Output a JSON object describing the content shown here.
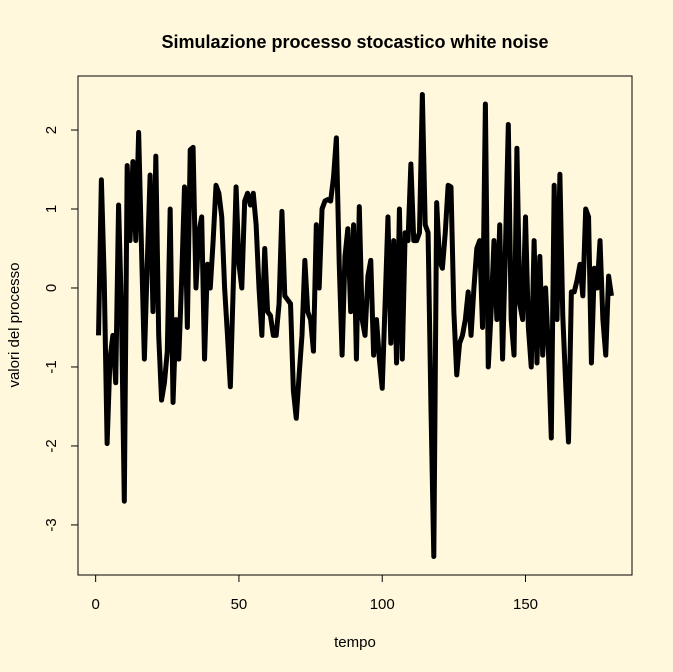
{
  "chart_data": {
    "type": "line",
    "title": "Simulazione processo stocastico white noise",
    "x_label": "tempo",
    "y_label": "valori del processo",
    "x": [
      1,
      2,
      3,
      4,
      5,
      6,
      7,
      8,
      9,
      10,
      11,
      12,
      13,
      14,
      15,
      16,
      17,
      18,
      19,
      20,
      21,
      22,
      23,
      24,
      25,
      26,
      27,
      28,
      29,
      30,
      31,
      32,
      33,
      34,
      35,
      36,
      37,
      38,
      39,
      40,
      41,
      42,
      43,
      44,
      45,
      46,
      47,
      48,
      49,
      50,
      51,
      52,
      53,
      54,
      55,
      56,
      57,
      58,
      59,
      60,
      61,
      62,
      63,
      64,
      65,
      66,
      67,
      68,
      69,
      70,
      71,
      72,
      73,
      74,
      75,
      76,
      77,
      78,
      79,
      80,
      81,
      82,
      83,
      84,
      85,
      86,
      87,
      88,
      89,
      90,
      91,
      92,
      93,
      94,
      95,
      96,
      97,
      98,
      99,
      100,
      101,
      102,
      103,
      104,
      105,
      106,
      107,
      108,
      109,
      110,
      111,
      112,
      113,
      114,
      115,
      116,
      117,
      118,
      119,
      120,
      121,
      122,
      123,
      124,
      125,
      126,
      127,
      128,
      129,
      130,
      131,
      132,
      133,
      134,
      135,
      136,
      137,
      138,
      139,
      140,
      141,
      142,
      143,
      144,
      145,
      146,
      147,
      148,
      149,
      150,
      151,
      152,
      153,
      154,
      155,
      156,
      157,
      158,
      159,
      160,
      161,
      162,
      163,
      164,
      165,
      166,
      167,
      168,
      169,
      170,
      171,
      172,
      173,
      174,
      175,
      176,
      177,
      178,
      179,
      180
    ],
    "series": [
      {
        "name": "white noise",
        "color": "#000000",
        "values": [
          -0.6,
          1.37,
          0.1,
          -1.97,
          -0.9,
          -0.6,
          -1.2,
          1.05,
          -0.3,
          -2.7,
          1.55,
          0.6,
          1.6,
          0.6,
          1.97,
          0.5,
          -0.9,
          0.3,
          1.43,
          -0.3,
          1.67,
          -0.6,
          -1.42,
          -1.2,
          -0.8,
          1.0,
          -1.45,
          -0.4,
          -0.9,
          0.1,
          1.28,
          -0.5,
          1.75,
          1.78,
          0.0,
          0.7,
          0.9,
          -0.9,
          0.3,
          0.0,
          0.6,
          1.3,
          1.2,
          0.9,
          0.0,
          -0.6,
          -1.25,
          0.0,
          1.28,
          0.3,
          0.0,
          1.1,
          1.2,
          1.05,
          1.2,
          0.8,
          0.0,
          -0.6,
          0.5,
          -0.3,
          -0.35,
          -0.6,
          -0.6,
          -0.2,
          0.97,
          -0.1,
          -0.15,
          -0.2,
          -1.3,
          -1.65,
          -1.1,
          -0.6,
          0.35,
          -0.3,
          -0.4,
          -0.8,
          0.8,
          0.0,
          1.0,
          1.1,
          1.12,
          1.1,
          1.4,
          1.9,
          0.3,
          -0.85,
          0.4,
          0.75,
          -0.3,
          0.8,
          -0.9,
          1.03,
          -0.4,
          -0.6,
          0.15,
          0.35,
          -0.85,
          -0.4,
          -0.9,
          -1.27,
          -0.2,
          0.9,
          -0.7,
          0.6,
          -0.95,
          1.0,
          -0.9,
          0.7,
          0.6,
          1.57,
          0.6,
          0.6,
          0.7,
          2.45,
          0.8,
          0.7,
          -1.5,
          -3.4,
          1.08,
          0.35,
          0.25,
          0.7,
          1.3,
          1.28,
          -0.3,
          -1.1,
          -0.7,
          -0.6,
          -0.4,
          -0.05,
          -0.6,
          0.0,
          0.5,
          0.6,
          -0.5,
          2.33,
          -1.0,
          -0.3,
          0.6,
          -0.4,
          0.8,
          -0.9,
          0.5,
          2.07,
          -0.4,
          -0.85,
          1.77,
          -0.2,
          -0.4,
          0.9,
          -0.5,
          -1.0,
          0.6,
          -0.95,
          0.4,
          -0.85,
          0.0,
          -0.8,
          -1.9,
          1.3,
          -0.4,
          1.44,
          -0.35,
          -1.2,
          -1.95,
          -0.05,
          -0.05,
          0.1,
          0.3,
          -0.1,
          1.0,
          0.9,
          -0.95,
          0.25,
          0.0,
          0.6,
          -0.4,
          -0.85,
          0.15,
          -0.1
        ]
      }
    ],
    "xlim": [
      -6.16,
      187.16
    ],
    "xticks": [
      0,
      50,
      100,
      150
    ],
    "ylim": [
      -3.634,
      2.684
    ],
    "yticks": [
      -3,
      -2,
      -1,
      0,
      1,
      2
    ]
  }
}
